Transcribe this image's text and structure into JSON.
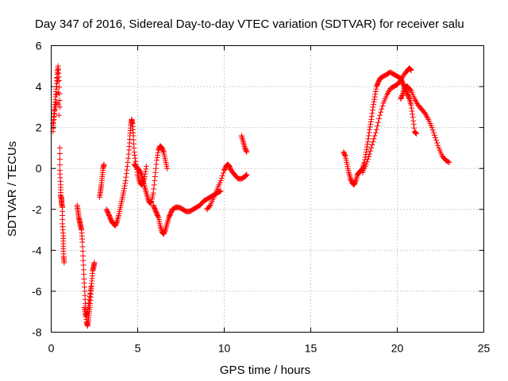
{
  "chart_data": {
    "type": "scatter",
    "title": "Day 347 of 2016, Sidereal Day-to-day VTEC variation (SDTVAR) for receiver salu",
    "xlabel": "GPS time / hours",
    "ylabel": "SDTVAR / TECUs",
    "xlim": [
      0,
      25
    ],
    "ylim": [
      -8,
      6
    ],
    "xticks": [
      0,
      5,
      10,
      15,
      20,
      25
    ],
    "yticks": [
      -8,
      -6,
      -4,
      -2,
      0,
      2,
      4,
      6
    ],
    "xtick_labels": [
      "0",
      "5",
      "10",
      "15",
      "20",
      "25"
    ],
    "ytick_labels": [
      "-8",
      "-6",
      "-4",
      "-2",
      "0",
      "2",
      "4",
      "6"
    ],
    "grid": true,
    "marker": "+",
    "series": [
      {
        "name": "SDTVAR",
        "color": "#ff0000",
        "segments": [
          [
            [
              0.1,
              1.8
            ],
            [
              0.15,
              2.4
            ],
            [
              0.2,
              3.0
            ],
            [
              0.25,
              3.5
            ],
            [
              0.3,
              4.0
            ],
            [
              0.35,
              4.6
            ],
            [
              0.4,
              5.0
            ],
            [
              0.45,
              4.3
            ],
            [
              0.5,
              3.0
            ]
          ],
          [
            [
              0.1,
              2.2
            ],
            [
              0.2,
              2.8
            ],
            [
              0.3,
              3.2
            ],
            [
              0.35,
              4.8
            ],
            [
              0.45,
              2.6
            ]
          ],
          [
            [
              0.5,
              1.0
            ],
            [
              0.5,
              -0.1
            ],
            [
              0.55,
              -0.8
            ],
            [
              0.55,
              -1.3
            ],
            [
              0.6,
              -1.5
            ],
            [
              0.6,
              -1.7
            ],
            [
              0.65,
              -1.9
            ],
            [
              0.65,
              -2.7
            ],
            [
              0.7,
              -3.3
            ],
            [
              0.7,
              -3.8
            ],
            [
              0.72,
              -4.3
            ],
            [
              0.75,
              -4.6
            ]
          ],
          [
            [
              1.5,
              -1.8
            ],
            [
              1.55,
              -2.1
            ],
            [
              1.6,
              -2.4
            ],
            [
              1.65,
              -2.6
            ],
            [
              1.7,
              -2.8
            ],
            [
              1.75,
              -3.0
            ],
            [
              1.8,
              -3.6
            ],
            [
              1.85,
              -4.5
            ],
            [
              1.9,
              -5.4
            ],
            [
              1.95,
              -6.2
            ],
            [
              2.0,
              -7.0
            ],
            [
              2.05,
              -7.5
            ],
            [
              2.1,
              -7.7
            ],
            [
              2.15,
              -7.4
            ],
            [
              2.2,
              -7.0
            ],
            [
              2.25,
              -6.6
            ],
            [
              2.3,
              -6.0
            ],
            [
              2.35,
              -5.5
            ],
            [
              2.4,
              -5.0
            ],
            [
              2.45,
              -4.8
            ],
            [
              2.5,
              -4.6
            ]
          ],
          [
            [
              1.9,
              -6.8
            ],
            [
              2.0,
              -7.2
            ],
            [
              2.1,
              -7.0
            ],
            [
              2.2,
              -6.4
            ],
            [
              2.3,
              -5.8
            ]
          ],
          [
            [
              2.8,
              -1.4
            ],
            [
              2.85,
              -1.1
            ],
            [
              2.9,
              -0.8
            ],
            [
              2.95,
              -0.4
            ],
            [
              3.0,
              0.0
            ],
            [
              3.05,
              0.2
            ]
          ],
          [
            [
              3.2,
              -2.0
            ],
            [
              3.3,
              -2.2
            ],
            [
              3.4,
              -2.4
            ],
            [
              3.5,
              -2.6
            ],
            [
              3.6,
              -2.7
            ],
            [
              3.7,
              -2.8
            ],
            [
              3.8,
              -2.6
            ],
            [
              3.9,
              -2.3
            ],
            [
              4.0,
              -1.9
            ],
            [
              4.1,
              -1.5
            ],
            [
              4.2,
              -1.1
            ],
            [
              4.3,
              -0.6
            ],
            [
              4.4,
              0.1
            ],
            [
              4.5,
              0.9
            ],
            [
              4.55,
              1.6
            ],
            [
              4.6,
              2.1
            ],
            [
              4.65,
              2.4
            ],
            [
              4.7,
              2.2
            ],
            [
              4.75,
              1.6
            ],
            [
              4.8,
              0.8
            ],
            [
              4.9,
              0.2
            ],
            [
              5.0,
              -0.3
            ],
            [
              5.1,
              -0.6
            ],
            [
              5.2,
              -0.8
            ],
            [
              5.3,
              -0.7
            ],
            [
              5.4,
              -0.4
            ],
            [
              5.5,
              0.1
            ]
          ],
          [
            [
              4.8,
              0.2
            ],
            [
              4.9,
              0.1
            ],
            [
              5.0,
              0.0
            ],
            [
              5.1,
              -0.1
            ],
            [
              5.2,
              -0.3
            ],
            [
              5.3,
              -0.6
            ],
            [
              5.4,
              -0.9
            ],
            [
              5.5,
              -1.2
            ],
            [
              5.6,
              -1.5
            ],
            [
              5.7,
              -1.7
            ],
            [
              5.8,
              -1.6
            ],
            [
              5.9,
              -1.2
            ],
            [
              6.0,
              -0.4
            ],
            [
              6.1,
              0.4
            ],
            [
              6.2,
              0.9
            ],
            [
              6.3,
              1.1
            ],
            [
              6.4,
              1.0
            ],
            [
              6.5,
              0.8
            ],
            [
              6.6,
              0.4
            ],
            [
              6.7,
              0.0
            ]
          ],
          [
            [
              5.9,
              -1.8
            ],
            [
              6.0,
              -2.0
            ],
            [
              6.1,
              -2.2
            ],
            [
              6.2,
              -2.4
            ],
            [
              6.3,
              -2.8
            ],
            [
              6.4,
              -3.1
            ],
            [
              6.5,
              -3.2
            ],
            [
              6.6,
              -3.0
            ],
            [
              6.7,
              -2.7
            ],
            [
              6.8,
              -2.4
            ],
            [
              6.9,
              -2.2
            ],
            [
              7.0,
              -2.0
            ],
            [
              7.2,
              -1.9
            ],
            [
              7.4,
              -1.9
            ],
            [
              7.6,
              -2.0
            ],
            [
              7.8,
              -2.1
            ],
            [
              8.0,
              -2.1
            ],
            [
              8.2,
              -2.0
            ],
            [
              8.4,
              -1.9
            ],
            [
              8.6,
              -1.8
            ],
            [
              8.8,
              -1.6
            ],
            [
              9.0,
              -1.5
            ],
            [
              9.2,
              -1.4
            ],
            [
              9.4,
              -1.3
            ],
            [
              9.6,
              -1.2
            ],
            [
              9.8,
              -1.1
            ]
          ],
          [
            [
              9.0,
              -2.0
            ],
            [
              9.2,
              -1.8
            ],
            [
              9.4,
              -1.4
            ],
            [
              9.6,
              -1.0
            ],
            [
              9.8,
              -0.6
            ],
            [
              10.0,
              -0.1
            ],
            [
              10.1,
              0.1
            ],
            [
              10.2,
              0.2
            ],
            [
              10.3,
              0.1
            ],
            [
              10.4,
              -0.1
            ],
            [
              10.6,
              -0.3
            ],
            [
              10.8,
              -0.5
            ],
            [
              11.0,
              -0.5
            ],
            [
              11.2,
              -0.4
            ],
            [
              11.3,
              -0.3
            ]
          ],
          [
            [
              11.0,
              1.6
            ],
            [
              11.1,
              1.3
            ],
            [
              11.2,
              1.0
            ],
            [
              11.3,
              0.8
            ]
          ],
          [
            [
              16.9,
              0.8
            ],
            [
              17.0,
              0.6
            ],
            [
              17.1,
              0.2
            ],
            [
              17.2,
              -0.2
            ],
            [
              17.3,
              -0.5
            ],
            [
              17.4,
              -0.7
            ],
            [
              17.5,
              -0.8
            ],
            [
              17.6,
              -0.6
            ],
            [
              17.7,
              -0.3
            ],
            [
              17.8,
              -0.2
            ],
            [
              17.9,
              -0.1
            ],
            [
              18.0,
              0.0
            ],
            [
              18.1,
              0.3
            ],
            [
              18.2,
              0.8
            ],
            [
              18.3,
              1.3
            ],
            [
              18.4,
              1.9
            ],
            [
              18.5,
              2.4
            ],
            [
              18.6,
              3.0
            ],
            [
              18.7,
              3.5
            ],
            [
              18.8,
              4.0
            ],
            [
              18.9,
              4.2
            ],
            [
              19.0,
              4.4
            ],
            [
              19.2,
              4.5
            ],
            [
              19.4,
              4.6
            ],
            [
              19.6,
              4.7
            ],
            [
              19.8,
              4.6
            ],
            [
              20.0,
              4.5
            ],
            [
              20.2,
              4.4
            ],
            [
              20.3,
              4.2
            ],
            [
              20.4,
              4.0
            ],
            [
              20.5,
              3.8
            ],
            [
              20.6,
              3.6
            ],
            [
              20.7,
              3.4
            ],
            [
              20.8,
              3.1
            ],
            [
              20.9,
              2.5
            ],
            [
              21.0,
              1.8
            ],
            [
              21.1,
              1.7
            ]
          ],
          [
            [
              18.0,
              -0.2
            ],
            [
              18.2,
              0.2
            ],
            [
              18.4,
              0.7
            ],
            [
              18.6,
              1.3
            ],
            [
              18.8,
              1.9
            ],
            [
              19.0,
              2.6
            ],
            [
              19.2,
              3.2
            ],
            [
              19.4,
              3.6
            ],
            [
              19.6,
              3.9
            ],
            [
              19.8,
              4.0
            ],
            [
              20.0,
              4.1
            ],
            [
              20.2,
              4.3
            ],
            [
              20.4,
              4.6
            ],
            [
              20.6,
              4.8
            ],
            [
              20.7,
              4.9
            ],
            [
              20.8,
              4.8
            ]
          ],
          [
            [
              20.2,
              3.4
            ],
            [
              20.3,
              3.6
            ],
            [
              20.4,
              3.9
            ],
            [
              20.5,
              4.0
            ],
            [
              20.6,
              4.0
            ],
            [
              20.8,
              3.8
            ],
            [
              21.0,
              3.4
            ],
            [
              21.2,
              3.1
            ],
            [
              21.4,
              2.9
            ],
            [
              21.6,
              2.7
            ],
            [
              21.8,
              2.4
            ],
            [
              22.0,
              2.0
            ],
            [
              22.2,
              1.5
            ],
            [
              22.4,
              1.0
            ],
            [
              22.6,
              0.6
            ],
            [
              22.8,
              0.4
            ],
            [
              23.0,
              0.3
            ]
          ]
        ]
      }
    ]
  }
}
